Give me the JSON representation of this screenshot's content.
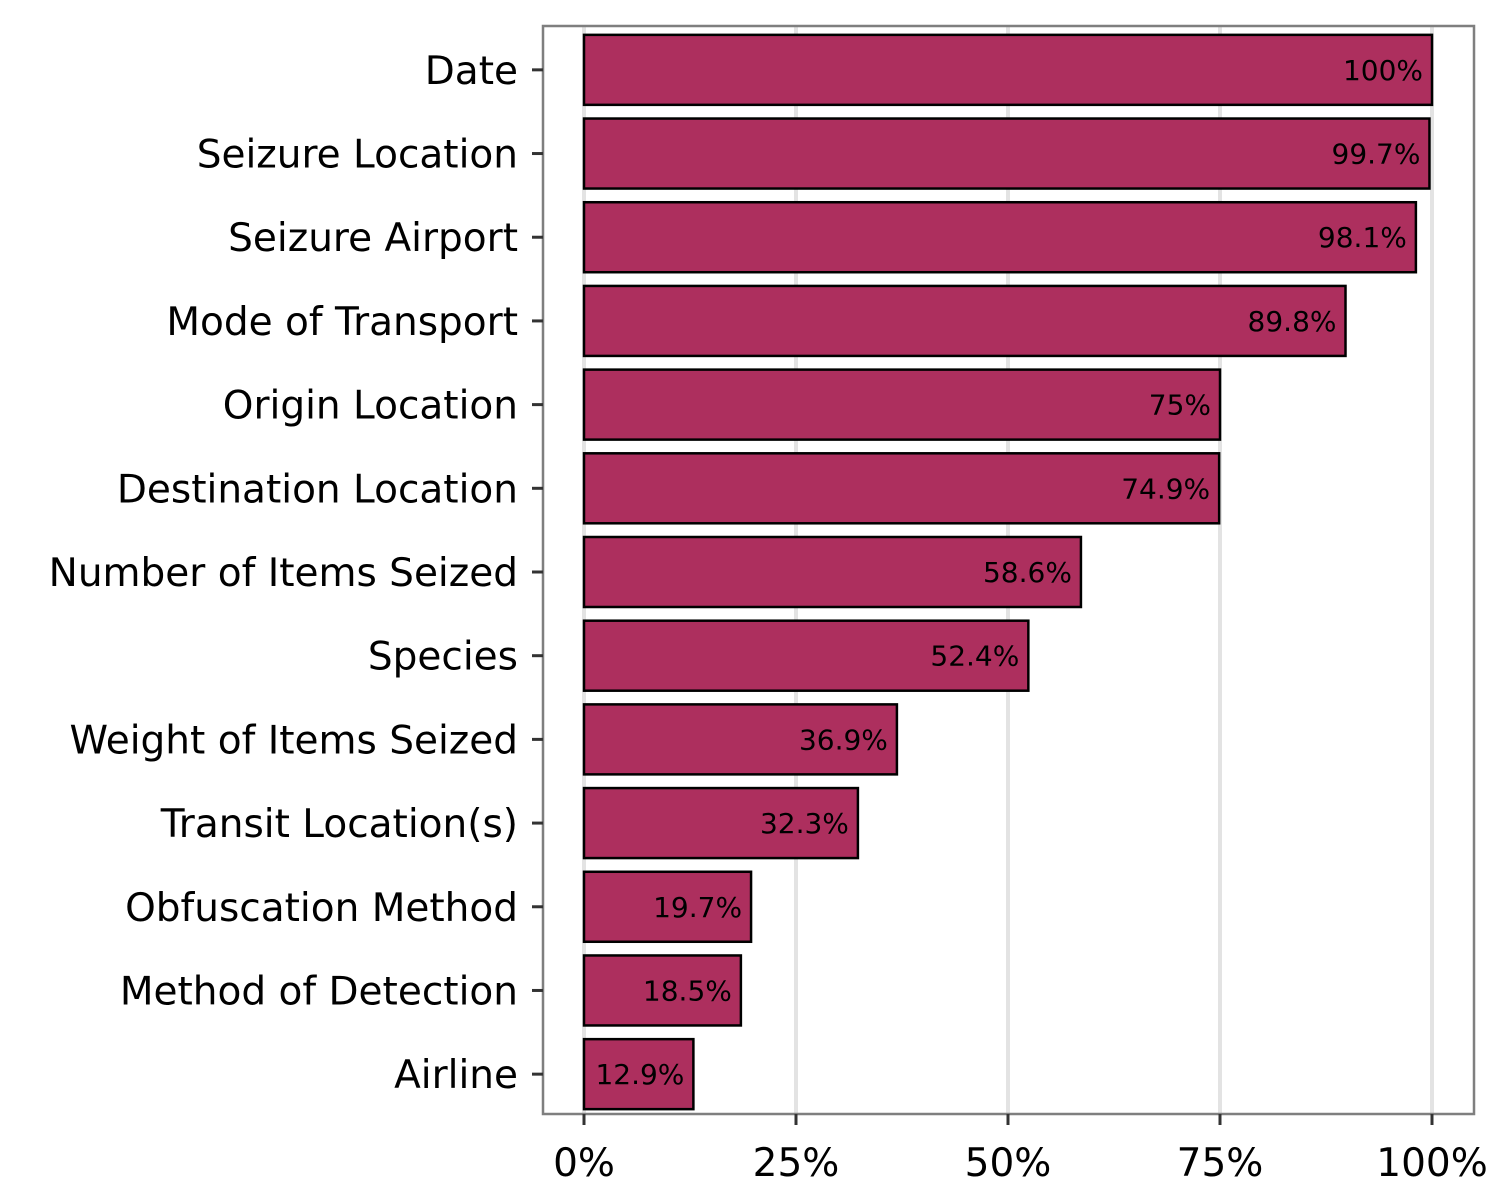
{
  "chart_data": {
    "type": "bar",
    "orientation": "horizontal",
    "title": "",
    "xlabel": "",
    "ylabel": "",
    "categories": [
      "Date",
      "Seizure Location",
      "Seizure Airport",
      "Mode of Transport",
      "Origin Location",
      "Destination Location",
      "Number of Items Seized",
      "Species",
      "Weight of Items Seized",
      "Transit Location(s)",
      "Obfuscation Method",
      "Method of Detection",
      "Airline"
    ],
    "values": [
      100,
      99.7,
      98.1,
      89.8,
      75,
      74.9,
      58.6,
      52.4,
      36.9,
      32.3,
      19.7,
      18.5,
      12.9
    ],
    "data_labels": [
      "100%",
      "99.7%",
      "98.1%",
      "89.8%",
      "75%",
      "74.9%",
      "58.6%",
      "52.4%",
      "36.9%",
      "32.3%",
      "19.7%",
      "18.5%",
      "12.9%"
    ],
    "x_ticks": [
      0,
      25,
      50,
      75,
      100
    ],
    "x_tick_labels": [
      "0%",
      "25%",
      "50%",
      "75%",
      "100%"
    ],
    "xlim": [
      -4.8,
      104.9
    ],
    "grid": "vertical-major",
    "legend": "none",
    "colors": {
      "bar_fill": "#AD2F5E",
      "bar_stroke": "#000000",
      "grid": "#E3E3E3",
      "panel_border": "#7F7F7F",
      "text": "#000000"
    }
  }
}
